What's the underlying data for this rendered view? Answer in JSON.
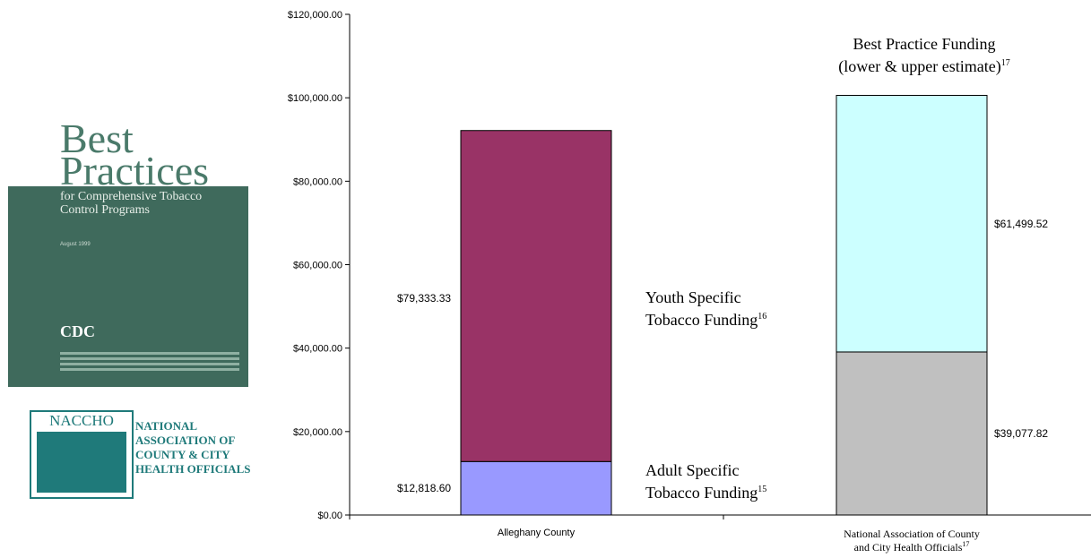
{
  "decor": {
    "cover_title_1": "Best",
    "cover_title_2": "Practices",
    "cover_subtitle": "for Comprehensive Tobacco Control Programs",
    "cover_date": "August 1999",
    "cover_org": "CDC",
    "naccho_acronym": "NACCHO",
    "naccho_name_lines": [
      "NATIONAL",
      "ASSOCIATION OF",
      "COUNTY & CITY",
      "HEALTH OFFICIALS"
    ]
  },
  "chart_data": {
    "type": "bar",
    "stacked": true,
    "categories": [
      "Alleghany County",
      "National Association of County and City Health Officials"
    ],
    "category_superscripts": [
      "",
      "17"
    ],
    "series": [
      {
        "name": "Adult Specific Tobacco Funding",
        "superscript": "15",
        "values": [
          12818.6,
          null
        ],
        "color": "#9999ff"
      },
      {
        "name": "Youth Specific Tobacco Funding",
        "superscript": "16",
        "values": [
          79333.33,
          null
        ],
        "color": "#993366"
      },
      {
        "name": "Best Practice Funding lower estimate",
        "values": [
          null,
          39077.82
        ],
        "color": "#c0c0c0"
      },
      {
        "name": "Best Practice Funding upper estimate",
        "values": [
          null,
          61499.52
        ],
        "color": "#ccffff"
      }
    ],
    "data_labels": [
      "$12,818.60",
      "$79,333.33",
      "$39,077.82",
      "$61,499.52"
    ],
    "annotations": [
      {
        "lines": [
          "Youth Specific",
          "Tobacco Funding"
        ],
        "superscript": "16"
      },
      {
        "lines": [
          "Adult Specific",
          "Tobacco Funding"
        ],
        "superscript": "15"
      },
      {
        "lines": [
          "Best Practice Funding",
          "(lower & upper estimate)"
        ],
        "superscript": "17"
      }
    ],
    "ylim": [
      0,
      120000
    ],
    "yticks": [
      0,
      20000,
      40000,
      60000,
      80000,
      100000,
      120000
    ],
    "ytick_labels": [
      "$0.00",
      "$20,000.00",
      "$40,000.00",
      "$60,000.00",
      "$80,000.00",
      "$100,000.00",
      "$120,000.00"
    ],
    "grid": false,
    "legend": "none"
  }
}
